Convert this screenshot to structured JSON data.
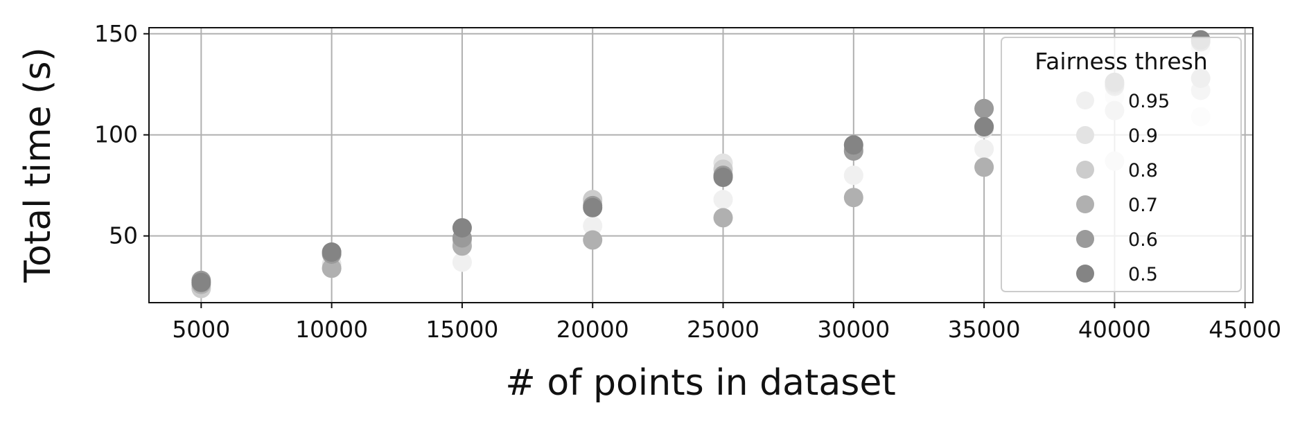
{
  "chart_data": {
    "type": "scatter",
    "title": "",
    "xlabel": "# of points in dataset",
    "ylabel": "Total time (s)",
    "xlim": [
      3000,
      45300
    ],
    "ylim": [
      17,
      153
    ],
    "x_ticks": [
      5000,
      10000,
      15000,
      20000,
      25000,
      30000,
      35000,
      40000,
      45000
    ],
    "y_ticks": [
      50,
      100,
      150
    ],
    "grid": true,
    "legend": {
      "title": "Fairness thresh",
      "position": "top-right"
    },
    "series": [
      {
        "name": "0.95",
        "color": "#f0f0f0",
        "points": [
          [
            5000,
            24
          ],
          [
            10000,
            34
          ],
          [
            15000,
            37
          ],
          [
            20000,
            55
          ],
          [
            25000,
            68
          ],
          [
            30000,
            80
          ],
          [
            35000,
            93
          ],
          [
            40000,
            119
          ],
          [
            43300,
            109
          ]
        ]
      },
      {
        "name": "0.9",
        "color": "#e3e3e3",
        "points": [
          [
            5000,
            25
          ],
          [
            10000,
            36
          ],
          [
            15000,
            47
          ],
          [
            20000,
            67
          ],
          [
            25000,
            86
          ],
          [
            30000,
            95
          ],
          [
            35000,
            103
          ],
          [
            40000,
            87
          ],
          [
            43300,
            143
          ]
        ]
      },
      {
        "name": "0.8",
        "color": "#cccccc",
        "points": [
          [
            5000,
            24
          ],
          [
            10000,
            34
          ],
          [
            15000,
            48
          ],
          [
            20000,
            68
          ],
          [
            25000,
            83
          ],
          [
            30000,
            93
          ],
          [
            35000,
            104
          ],
          [
            40000,
            112
          ],
          [
            43300,
            122
          ]
        ]
      },
      {
        "name": "0.7",
        "color": "#b0b0b0",
        "points": [
          [
            5000,
            26
          ],
          [
            10000,
            34
          ],
          [
            15000,
            45
          ],
          [
            20000,
            48
          ],
          [
            25000,
            59
          ],
          [
            30000,
            69
          ],
          [
            35000,
            84
          ],
          [
            40000,
            124
          ],
          [
            43300,
            128
          ]
        ]
      },
      {
        "name": "0.6",
        "color": "#9a9a9a",
        "points": [
          [
            5000,
            28
          ],
          [
            10000,
            41
          ],
          [
            15000,
            49
          ],
          [
            20000,
            65
          ],
          [
            25000,
            80
          ],
          [
            30000,
            92
          ],
          [
            35000,
            113
          ],
          [
            40000,
            125
          ],
          [
            43300,
            146
          ]
        ]
      },
      {
        "name": "0.5",
        "color": "#848484",
        "points": [
          [
            5000,
            27
          ],
          [
            10000,
            42
          ],
          [
            15000,
            54
          ],
          [
            20000,
            64
          ],
          [
            25000,
            79
          ],
          [
            30000,
            95
          ],
          [
            35000,
            104
          ],
          [
            40000,
            126
          ],
          [
            43300,
            147
          ]
        ]
      }
    ]
  }
}
